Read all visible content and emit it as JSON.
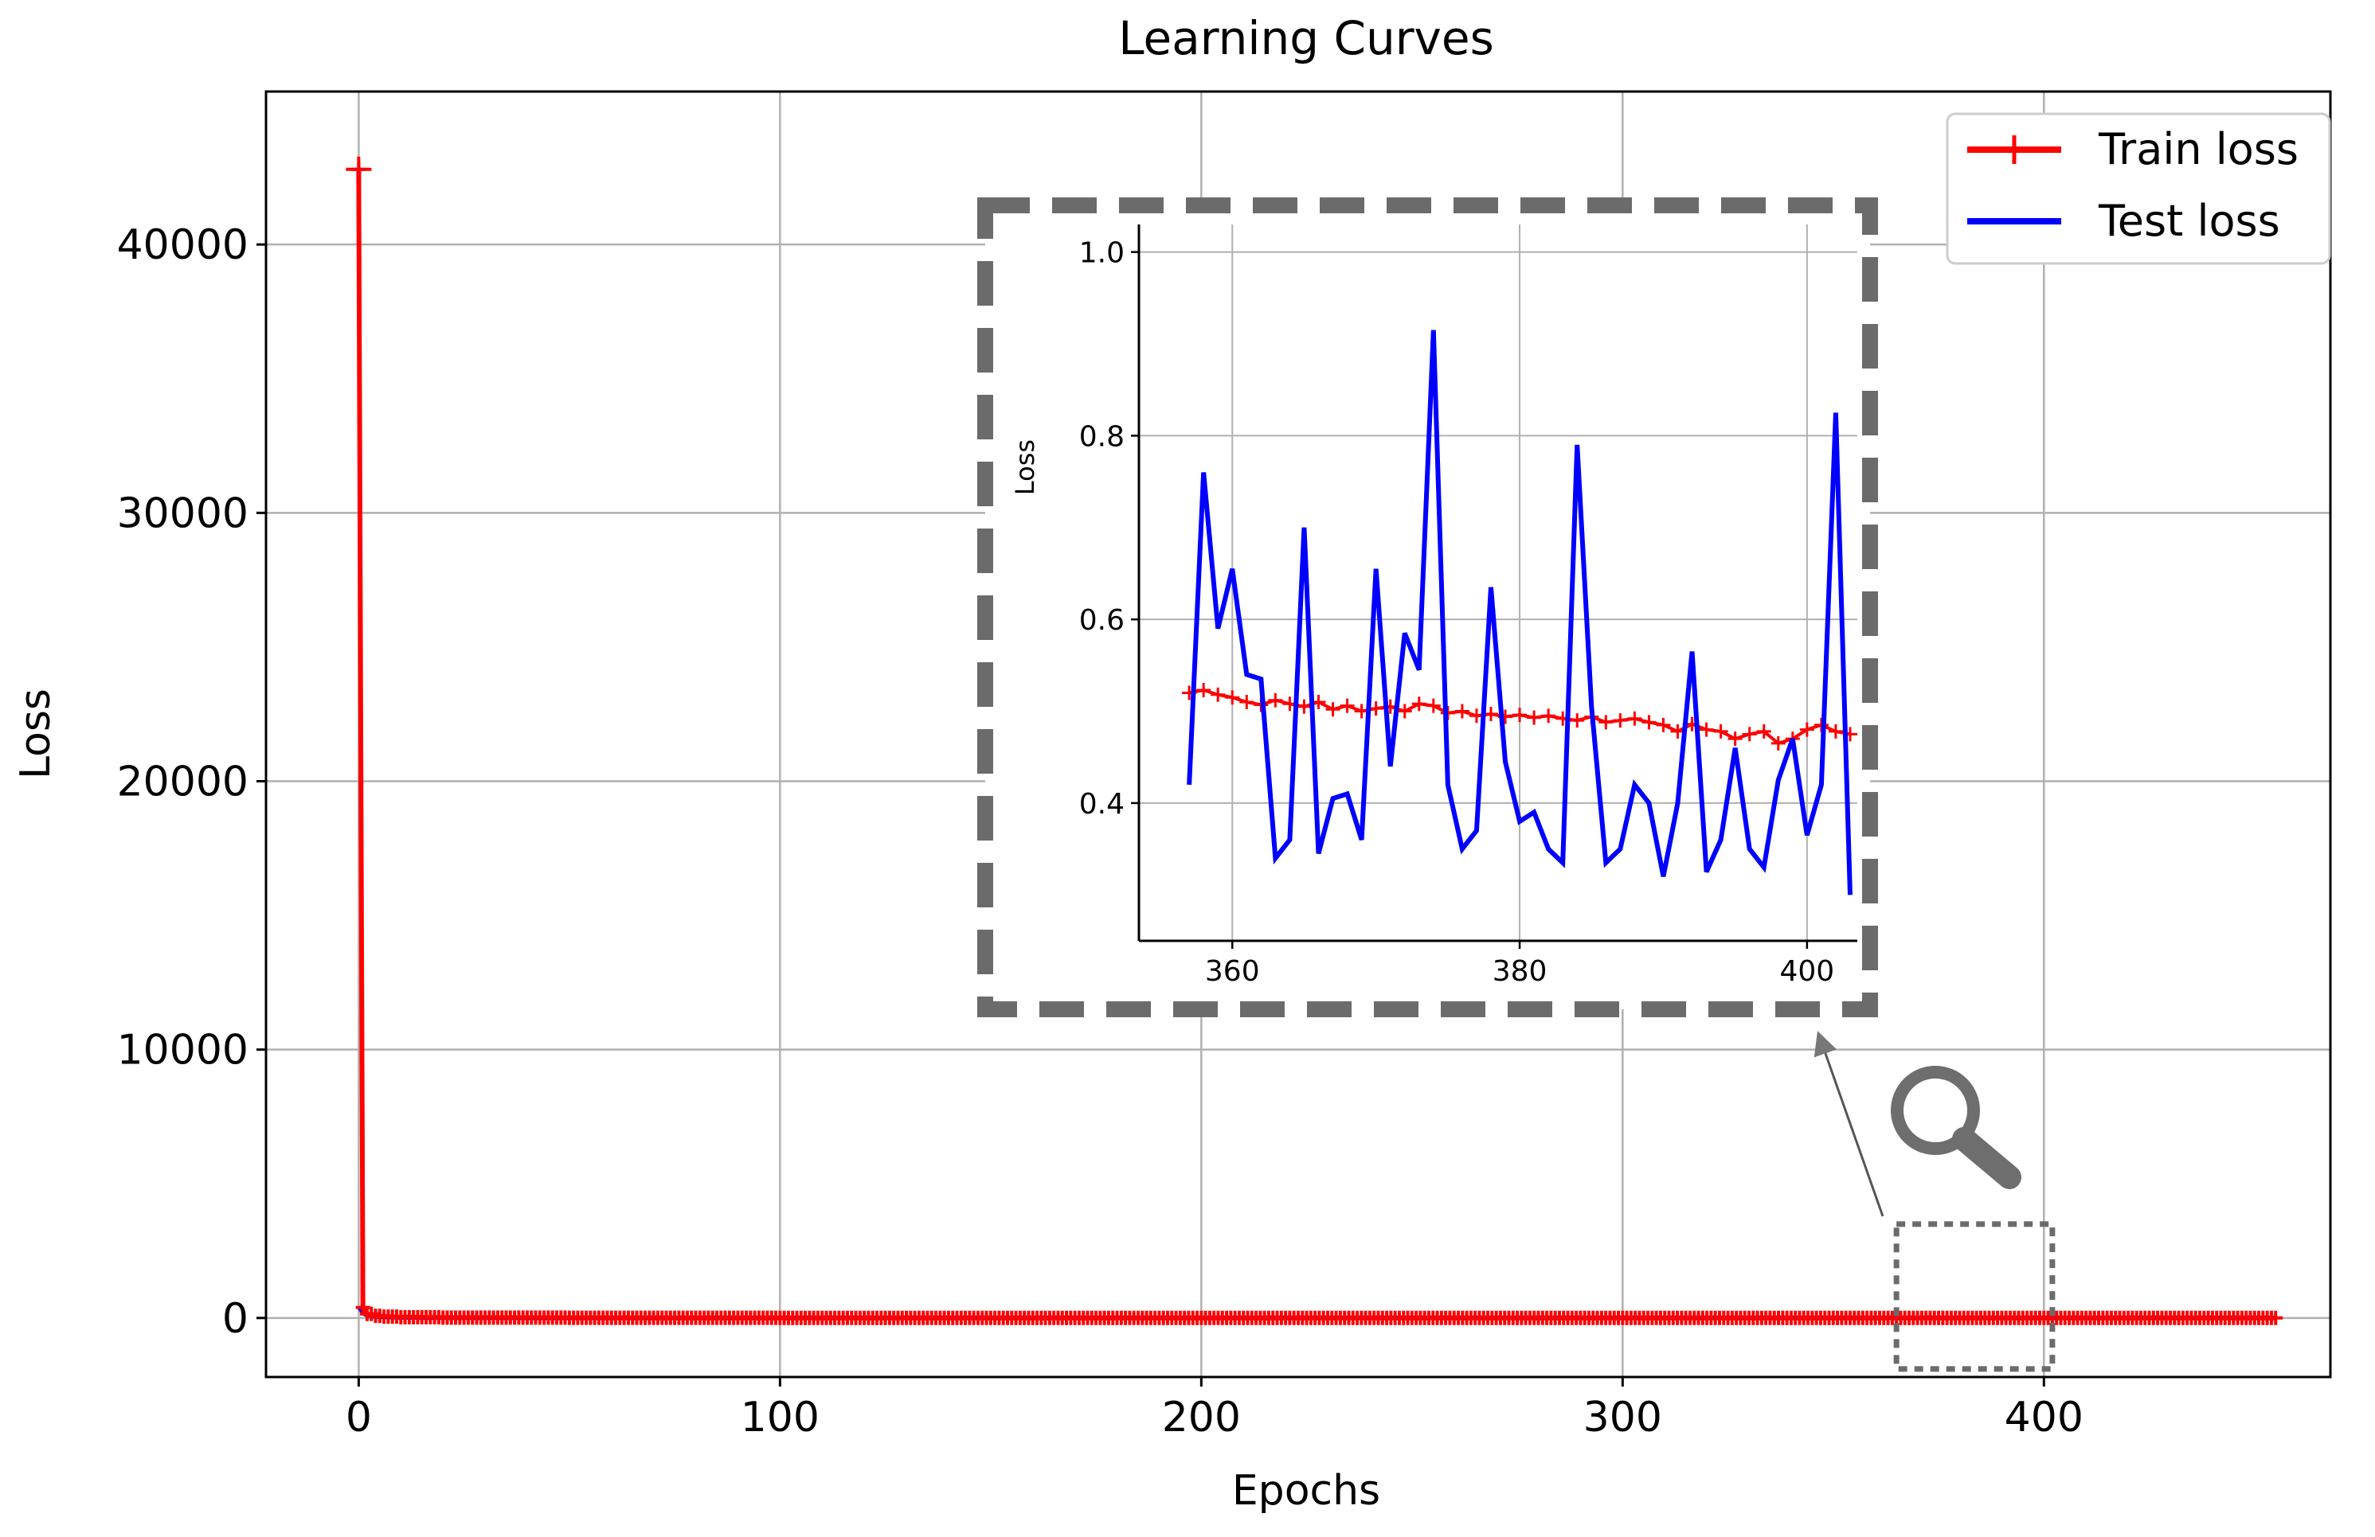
{
  "chart_data": [
    {
      "type": "line",
      "title": "Learning Curves",
      "xlabel": "Epochs",
      "ylabel": "Loss",
      "xlim": [
        -22,
        468
      ],
      "ylim": [
        -2200,
        45700
      ],
      "xticks": [
        0,
        100,
        200,
        300,
        400
      ],
      "yticks": [
        0,
        10000,
        20000,
        30000,
        40000
      ],
      "grid": true,
      "legend_position": "top-right",
      "legend": [
        "Train loss",
        "Test loss"
      ],
      "series": [
        {
          "name": "Train loss",
          "color": "#ff0000",
          "marker": "+",
          "x": [
            0,
            1,
            2,
            4,
            6,
            10,
            20,
            50,
            100,
            150,
            200,
            250,
            300,
            350,
            400,
            455
          ],
          "y": [
            42800,
            390,
            150,
            80,
            50,
            30,
            15,
            5,
            2,
            1,
            0.8,
            0.6,
            0.55,
            0.52,
            0.48,
            0.45
          ]
        },
        {
          "name": "Test loss",
          "color": "#0000ff",
          "x": [
            0,
            1,
            2,
            4,
            6,
            10,
            20,
            50,
            100,
            150,
            200,
            250,
            300,
            350,
            400,
            455
          ],
          "y": [
            420,
            180,
            90,
            50,
            30,
            15,
            8,
            3,
            1.5,
            1,
            0.7,
            0.6,
            0.5,
            0.5,
            0.45,
            0.4
          ]
        }
      ],
      "zoom_region": {
        "x": [
          365,
          402
        ],
        "y": [
          -1900,
          3500
        ]
      }
    },
    {
      "type": "line",
      "ylabel": "Loss",
      "xlim": [
        353.5,
        403.5
      ],
      "ylim": [
        0.25,
        1.03
      ],
      "xticks": [
        360,
        380,
        400
      ],
      "yticks": [
        0.4,
        0.6,
        0.8,
        1.0
      ],
      "ytick_labels": [
        "0.4",
        "0.6",
        "0.8",
        "1.0"
      ],
      "grid": true,
      "series": [
        {
          "name": "Train loss",
          "color": "#ff0000",
          "marker": "+",
          "x": [
            357,
            358,
            359,
            360,
            361,
            362,
            363,
            364,
            365,
            366,
            367,
            368,
            369,
            370,
            371,
            372,
            373,
            374,
            375,
            376,
            377,
            378,
            379,
            380,
            381,
            382,
            383,
            384,
            385,
            386,
            387,
            388,
            389,
            390,
            391,
            392,
            393,
            394,
            395,
            396,
            397,
            398,
            399,
            400,
            401,
            402,
            403
          ],
          "y": [
            0.52,
            0.523,
            0.518,
            0.515,
            0.51,
            0.507,
            0.512,
            0.508,
            0.505,
            0.51,
            0.502,
            0.506,
            0.5,
            0.503,
            0.505,
            0.5,
            0.508,
            0.506,
            0.498,
            0.5,
            0.495,
            0.497,
            0.494,
            0.496,
            0.493,
            0.495,
            0.492,
            0.49,
            0.494,
            0.488,
            0.49,
            0.492,
            0.488,
            0.485,
            0.478,
            0.486,
            0.48,
            0.478,
            0.47,
            0.475,
            0.478,
            0.465,
            0.47,
            0.48,
            0.485,
            0.478,
            0.475
          ]
        },
        {
          "name": "Test loss",
          "color": "#0000ff",
          "x": [
            357,
            358,
            359,
            360,
            361,
            362,
            363,
            364,
            365,
            366,
            367,
            368,
            369,
            370,
            371,
            372,
            373,
            374,
            375,
            376,
            377,
            378,
            379,
            380,
            381,
            382,
            383,
            384,
            385,
            386,
            387,
            388,
            389,
            390,
            391,
            392,
            393,
            394,
            395,
            396,
            397,
            398,
            399,
            400,
            401,
            402,
            403
          ],
          "y": [
            0.42,
            0.76,
            0.59,
            0.655,
            0.54,
            0.535,
            0.34,
            0.36,
            0.7,
            0.345,
            0.405,
            0.41,
            0.36,
            0.655,
            0.44,
            0.585,
            0.545,
            0.915,
            0.42,
            0.35,
            0.37,
            0.635,
            0.445,
            0.38,
            0.39,
            0.35,
            0.335,
            0.79,
            0.505,
            0.335,
            0.35,
            0.42,
            0.4,
            0.32,
            0.4,
            0.565,
            0.325,
            0.36,
            0.46,
            0.35,
            0.33,
            0.425,
            0.47,
            0.365,
            0.42,
            0.825,
            0.3
          ]
        }
      ]
    }
  ]
}
